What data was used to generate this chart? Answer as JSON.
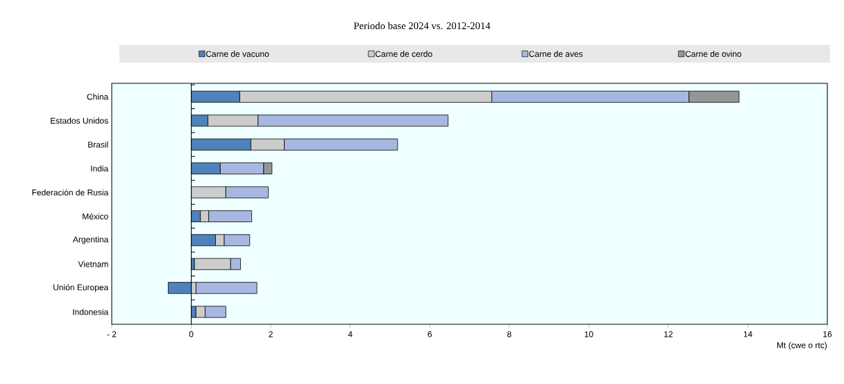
{
  "chart_data": {
    "type": "bar",
    "orientation": "horizontal",
    "stacked": true,
    "subtitle": "Periodo base 2024 vs. 2012-2014",
    "xlabel": "Mt (cwe o rtc)",
    "categories": [
      "China",
      "Estados Unidos",
      "Brasil",
      "India",
      "Federación de Rusia",
      "México",
      "Argentina",
      "Vietnam",
      "Unión Europea",
      "Indonesia"
    ],
    "series": [
      {
        "name": "Carne de vacuno",
        "color": "#4f81bd",
        "values": [
          1.22,
          0.42,
          1.5,
          0.73,
          0,
          0.23,
          0.61,
          0.08,
          -0.58,
          0.12
        ]
      },
      {
        "name": "Carne de cerdo",
        "color": "#cccccc",
        "values": [
          6.34,
          1.26,
          0.84,
          0,
          0.87,
          0.21,
          0.22,
          0.91,
          0.12,
          0.23
        ]
      },
      {
        "name": "Carne de aves",
        "color": "#a6b8e2",
        "values": [
          4.96,
          4.78,
          2.85,
          1.09,
          1.07,
          1.08,
          0.64,
          0.25,
          1.53,
          0.52
        ]
      },
      {
        "name": "Carne de ovino",
        "color": "#969696",
        "values": [
          1.26,
          0,
          0,
          0.21,
          0,
          0,
          0,
          0,
          0,
          0
        ]
      }
    ],
    "xlim": [
      -2,
      16
    ],
    "xticks": [
      {
        "value": -2,
        "label": "- 2"
      },
      0,
      2,
      4,
      6,
      8,
      10,
      12,
      14,
      16
    ],
    "legend": "top"
  }
}
